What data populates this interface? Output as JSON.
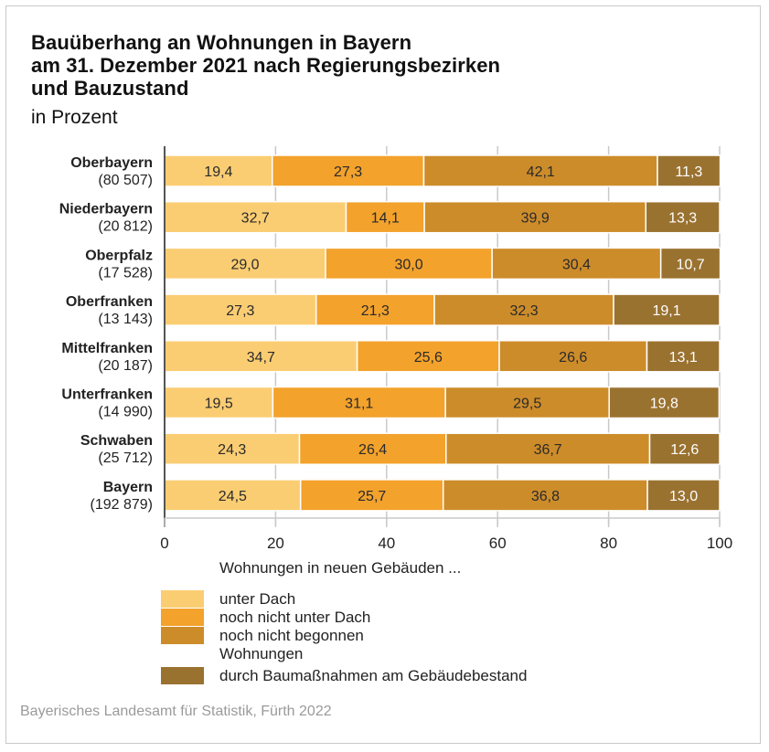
{
  "chart_data": {
    "type": "bar",
    "orientation": "horizontal",
    "stacked": true,
    "title": "Bauüberhang an Wohnungen in Bayern am 31. Dezember 2021 nach Regierungsbezirken und Bauzustand",
    "title_lines": [
      "Bauüberhang an Wohnungen in Bayern",
      "am 31. Dezember 2021 nach Regierungsbezirken",
      "und Bauzustand"
    ],
    "subtitle": "in Prozent",
    "xlabel": "",
    "ylabel": "",
    "xlim": [
      0,
      100
    ],
    "xticks": [
      0,
      20,
      40,
      60,
      80,
      100
    ],
    "xtick_labels": [
      "0",
      "20",
      "40",
      "60",
      "80",
      "100"
    ],
    "grid": true,
    "categories": [
      "Oberbayern",
      "Niederbayern",
      "Oberpfalz",
      "Oberfranken",
      "Mittelfranken",
      "Unterfranken",
      "Schwaben",
      "Bayern"
    ],
    "category_counts": [
      "(80 507)",
      "(20 812)",
      "(17 528)",
      "(13 143)",
      "(20 187)",
      "(14 990)",
      "(25 712)",
      "(192 879)"
    ],
    "series": [
      {
        "name": "unter Dach",
        "color": "#fbcd73",
        "label_color": "#2a2a2a",
        "values": [
          19.4,
          32.7,
          29.0,
          27.3,
          34.7,
          19.5,
          24.3,
          24.5
        ],
        "labels": [
          "19,4",
          "32,7",
          "29,0",
          "27,3",
          "34,7",
          "19,5",
          "24,3",
          "24,5"
        ]
      },
      {
        "name": "noch nicht unter Dach",
        "color": "#f3a22c",
        "label_color": "#2a2a2a",
        "values": [
          27.3,
          14.1,
          30.0,
          21.3,
          25.6,
          31.1,
          26.4,
          25.7
        ],
        "labels": [
          "27,3",
          "14,1",
          "30,0",
          "21,3",
          "25,6",
          "31,1",
          "26,4",
          "25,7"
        ]
      },
      {
        "name": "noch nicht begonnen",
        "color": "#cd8c2a",
        "label_color": "#2a2a2a",
        "values": [
          42.1,
          39.9,
          30.4,
          32.3,
          26.6,
          29.5,
          36.7,
          36.8
        ],
        "labels": [
          "42,1",
          "39,9",
          "30,4",
          "32,3",
          "26,6",
          "29,5",
          "36,7",
          "36,8"
        ]
      },
      {
        "name": "durch Baumaßnahmen am Gebäudebestand",
        "color": "#9a7230",
        "label_color": "#ffffff",
        "values": [
          11.3,
          13.3,
          10.7,
          19.1,
          13.1,
          19.8,
          12.6,
          13.0
        ],
        "labels": [
          "11,3",
          "13,3",
          "10,7",
          "19,1",
          "13,1",
          "19,8",
          "12,6",
          "13,0"
        ]
      }
    ],
    "legend": {
      "placement": "bottom",
      "group1_header": "Wohnungen in neuen Gebäuden ...",
      "group1_items": [
        "unter Dach",
        "noch nicht unter Dach",
        "noch nicht begonnen"
      ],
      "group2_header": "Wohnungen",
      "group2_items": [
        "durch Baumaßnahmen am Gebäudebestand"
      ]
    },
    "source": "Bayerisches Landesamt für Statistik, Fürth 2022"
  }
}
